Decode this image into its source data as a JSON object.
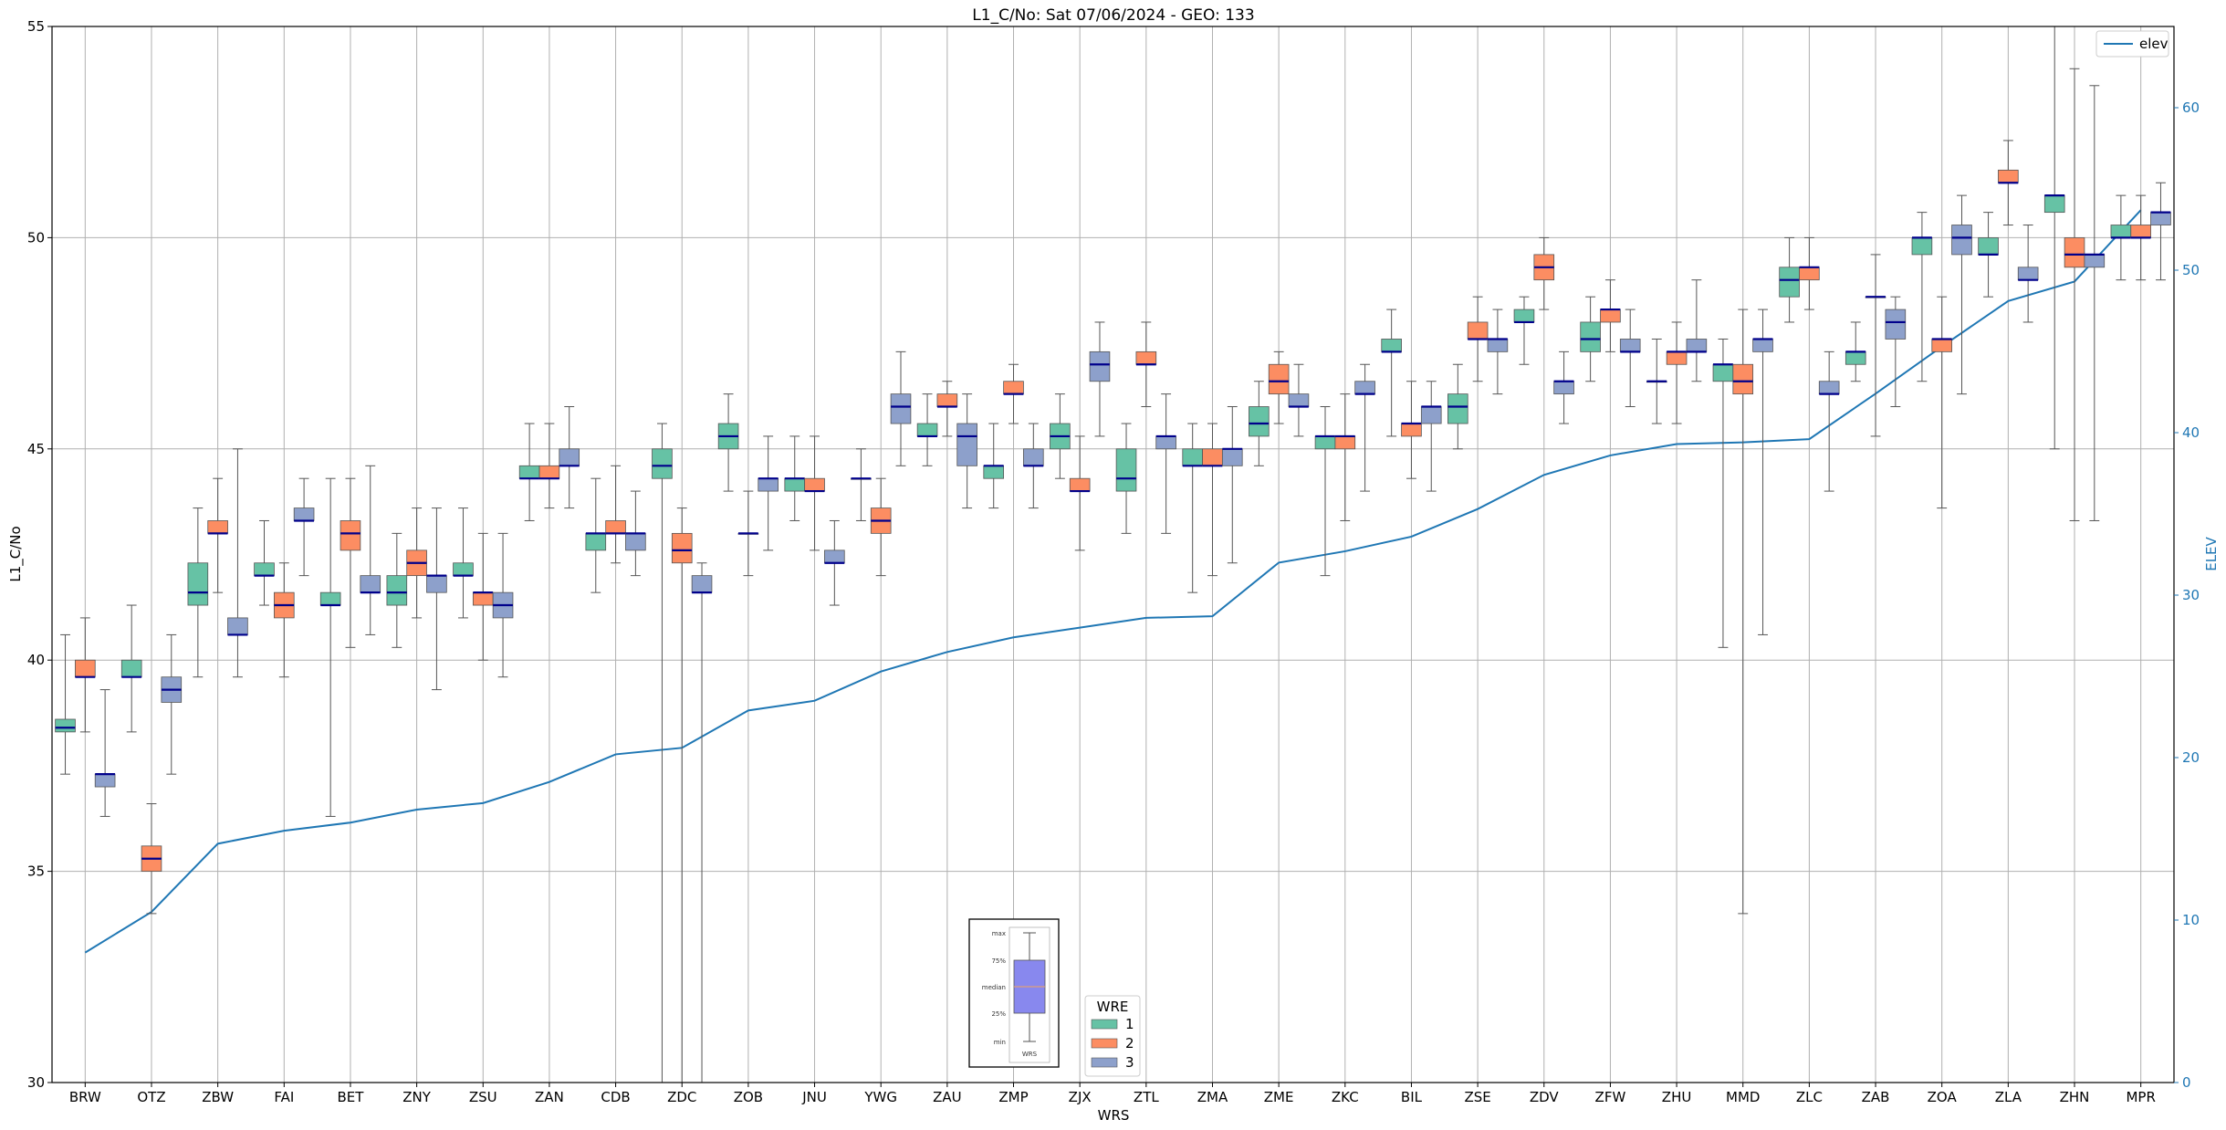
{
  "chart_data": {
    "type": "box",
    "title": "L1_C/No: Sat 07/06/2024 - GEO: 133",
    "xlabel": "WRS",
    "ylabel": "L1_C/No",
    "y2label": "ELEV",
    "ylim": [
      30,
      55
    ],
    "y2lim": [
      0,
      65
    ],
    "yticks": [
      30,
      35,
      40,
      45,
      50,
      55
    ],
    "y2ticks": [
      0,
      10,
      20,
      30,
      40,
      50,
      60
    ],
    "grid": true,
    "categories": [
      "BRW",
      "OTZ",
      "ZBW",
      "FAI",
      "BET",
      "ZNY",
      "ZSU",
      "ZAN",
      "CDB",
      "ZDC",
      "ZOB",
      "JNU",
      "YWG",
      "ZAU",
      "ZMP",
      "ZJX",
      "ZTL",
      "ZMA",
      "ZME",
      "ZKC",
      "BIL",
      "ZSE",
      "ZDV",
      "ZFW",
      "ZHU",
      "MMD",
      "ZLC",
      "ZAB",
      "ZOA",
      "ZLA",
      "ZHN",
      "MPR"
    ],
    "colors": {
      "1": "#66c2a5",
      "2": "#fc8d62",
      "3": "#8da0cb",
      "median": "#00008b",
      "elev": "#1f77b4",
      "whisker": "#555555"
    },
    "legend_title": "WRE",
    "series": [
      {
        "name": "1",
        "boxes": [
          [
            37.3,
            38.3,
            38.4,
            38.6,
            40.6
          ],
          [
            38.3,
            39.6,
            39.6,
            40.0,
            41.3
          ],
          [
            39.6,
            41.3,
            41.6,
            42.3,
            43.6
          ],
          [
            41.3,
            42.0,
            42.0,
            42.3,
            43.3
          ],
          [
            36.3,
            41.3,
            41.3,
            41.6,
            44.3
          ],
          [
            40.3,
            41.3,
            41.6,
            42.0,
            43.0
          ],
          [
            41.0,
            42.0,
            42.0,
            42.3,
            43.6
          ],
          [
            43.3,
            44.3,
            44.3,
            44.6,
            45.6
          ],
          [
            41.6,
            42.6,
            43.0,
            43.0,
            44.3
          ],
          [
            30.0,
            44.3,
            44.6,
            45.0,
            45.6
          ],
          [
            44.0,
            45.0,
            45.3,
            45.6,
            46.3
          ],
          [
            43.3,
            44.0,
            44.3,
            44.3,
            45.3
          ],
          [
            43.3,
            44.3,
            44.3,
            44.3,
            45.0
          ],
          [
            44.6,
            45.3,
            45.3,
            45.6,
            46.3
          ],
          [
            43.6,
            44.3,
            44.6,
            44.6,
            45.6
          ],
          [
            44.3,
            45.0,
            45.3,
            45.6,
            46.3
          ],
          [
            43.0,
            44.0,
            44.3,
            45.0,
            45.6
          ],
          [
            41.6,
            44.6,
            44.6,
            45.0,
            45.6
          ],
          [
            44.6,
            45.3,
            45.6,
            46.0,
            46.6
          ],
          [
            42.0,
            45.0,
            45.3,
            45.3,
            46.0
          ],
          [
            45.3,
            47.3,
            47.3,
            47.6,
            48.3
          ],
          [
            45.0,
            45.6,
            46.0,
            46.3,
            47.0
          ],
          [
            47.0,
            48.0,
            48.0,
            48.3,
            48.6
          ],
          [
            46.6,
            47.3,
            47.6,
            48.0,
            48.6
          ],
          [
            45.6,
            46.6,
            46.6,
            46.6,
            47.6
          ],
          [
            40.3,
            46.6,
            47.0,
            47.0,
            47.6
          ],
          [
            48.0,
            48.6,
            49.0,
            49.3,
            50.0
          ],
          [
            46.6,
            47.0,
            47.3,
            47.3,
            48.0
          ],
          [
            46.6,
            49.6,
            50.0,
            50.0,
            50.6
          ],
          [
            48.6,
            49.6,
            49.6,
            50.0,
            50.6
          ],
          [
            45.0,
            50.6,
            51.0,
            51.0,
            56.0
          ],
          [
            49.0,
            50.0,
            50.0,
            50.3,
            51.0
          ]
        ]
      },
      {
        "name": "2",
        "boxes": [
          [
            38.3,
            39.6,
            39.6,
            40.0,
            41.0
          ],
          [
            34.0,
            35.0,
            35.3,
            35.6,
            36.6
          ],
          [
            41.6,
            43.0,
            43.0,
            43.3,
            44.3
          ],
          [
            39.6,
            41.0,
            41.3,
            41.6,
            42.3
          ],
          [
            40.3,
            42.6,
            43.0,
            43.3,
            44.3
          ],
          [
            41.0,
            42.0,
            42.3,
            42.6,
            43.6
          ],
          [
            40.0,
            41.3,
            41.6,
            41.6,
            43.0
          ],
          [
            43.6,
            44.3,
            44.3,
            44.6,
            45.6
          ],
          [
            42.3,
            43.0,
            43.0,
            43.3,
            44.6
          ],
          [
            30.0,
            42.3,
            42.6,
            43.0,
            43.6
          ],
          [
            42.0,
            43.0,
            43.0,
            43.0,
            44.0
          ],
          [
            42.6,
            44.0,
            44.0,
            44.3,
            45.3
          ],
          [
            42.0,
            43.0,
            43.3,
            43.6,
            44.3
          ],
          [
            45.3,
            46.0,
            46.0,
            46.3,
            46.6
          ],
          [
            45.6,
            46.3,
            46.3,
            46.6,
            47.0
          ],
          [
            42.6,
            44.0,
            44.0,
            44.3,
            45.3
          ],
          [
            46.0,
            47.0,
            47.0,
            47.3,
            48.0
          ],
          [
            42.0,
            44.6,
            44.6,
            45.0,
            45.6
          ],
          [
            45.6,
            46.3,
            46.6,
            47.0,
            47.3
          ],
          [
            43.3,
            45.0,
            45.3,
            45.3,
            46.3
          ],
          [
            44.3,
            45.3,
            45.6,
            45.6,
            46.6
          ],
          [
            46.6,
            47.6,
            47.6,
            48.0,
            48.6
          ],
          [
            48.3,
            49.0,
            49.3,
            49.6,
            50.0
          ],
          [
            47.3,
            48.0,
            48.3,
            48.3,
            49.0
          ],
          [
            45.6,
            47.0,
            47.3,
            47.3,
            48.0
          ],
          [
            34.0,
            46.3,
            46.6,
            47.0,
            48.3
          ],
          [
            48.3,
            49.0,
            49.3,
            49.3,
            50.0
          ],
          [
            45.3,
            48.6,
            48.6,
            48.6,
            49.6
          ],
          [
            43.6,
            47.3,
            47.6,
            47.6,
            48.6
          ],
          [
            50.3,
            51.3,
            51.3,
            51.6,
            52.3
          ],
          [
            43.3,
            49.3,
            49.6,
            50.0,
            54.0
          ],
          [
            49.0,
            50.0,
            50.0,
            50.3,
            51.0
          ]
        ]
      },
      {
        "name": "3",
        "boxes": [
          [
            36.3,
            37.0,
            37.3,
            37.3,
            39.3
          ],
          [
            37.3,
            39.0,
            39.3,
            39.6,
            40.6
          ],
          [
            39.6,
            40.6,
            40.6,
            41.0,
            45.0
          ],
          [
            42.0,
            43.3,
            43.3,
            43.6,
            44.3
          ],
          [
            40.6,
            41.6,
            41.6,
            42.0,
            44.6
          ],
          [
            39.3,
            41.6,
            42.0,
            42.0,
            43.6
          ],
          [
            39.6,
            41.0,
            41.3,
            41.6,
            43.0
          ],
          [
            43.6,
            44.6,
            44.6,
            45.0,
            46.0
          ],
          [
            42.0,
            42.6,
            43.0,
            43.0,
            44.0
          ],
          [
            30.0,
            41.6,
            41.6,
            42.0,
            42.3
          ],
          [
            42.6,
            44.0,
            44.3,
            44.3,
            45.3
          ],
          [
            41.3,
            42.3,
            42.3,
            42.6,
            43.3
          ],
          [
            44.6,
            45.6,
            46.0,
            46.3,
            47.3
          ],
          [
            43.6,
            44.6,
            45.3,
            45.6,
            46.3
          ],
          [
            43.6,
            44.6,
            44.6,
            45.0,
            45.6
          ],
          [
            45.3,
            46.6,
            47.0,
            47.3,
            48.0
          ],
          [
            43.0,
            45.0,
            45.3,
            45.3,
            46.3
          ],
          [
            42.3,
            44.6,
            45.0,
            45.0,
            46.0
          ],
          [
            45.3,
            46.0,
            46.0,
            46.3,
            47.0
          ],
          [
            44.0,
            46.3,
            46.3,
            46.6,
            47.0
          ],
          [
            44.0,
            45.6,
            46.0,
            46.0,
            46.6
          ],
          [
            46.3,
            47.3,
            47.6,
            47.6,
            48.3
          ],
          [
            45.6,
            46.3,
            46.6,
            46.6,
            47.3
          ],
          [
            46.0,
            47.3,
            47.3,
            47.6,
            48.3
          ],
          [
            46.6,
            47.3,
            47.3,
            47.6,
            49.0
          ],
          [
            40.6,
            47.3,
            47.6,
            47.6,
            48.3
          ],
          [
            44.0,
            46.3,
            46.3,
            46.6,
            47.3
          ],
          [
            46.0,
            47.6,
            48.0,
            48.3,
            48.6
          ],
          [
            46.3,
            49.6,
            50.0,
            50.3,
            51.0
          ],
          [
            48.0,
            49.0,
            49.0,
            49.3,
            50.3
          ],
          [
            43.3,
            49.3,
            49.6,
            49.6,
            53.6
          ],
          [
            49.0,
            50.3,
            50.6,
            50.6,
            51.3
          ]
        ]
      }
    ],
    "elev": [
      8.0,
      10.5,
      14.7,
      15.5,
      16.0,
      16.8,
      17.2,
      18.5,
      20.2,
      20.6,
      22.9,
      23.5,
      25.3,
      26.5,
      27.4,
      28.0,
      28.6,
      28.7,
      32.0,
      32.7,
      33.6,
      35.3,
      37.4,
      38.6,
      39.3,
      39.4,
      39.6,
      42.4,
      45.3,
      48.1,
      49.3,
      53.7
    ],
    "legend_elev": "elev",
    "inset": {
      "labels": [
        "max",
        "75%",
        "median",
        "25%",
        "min"
      ],
      "xlabel": "WRS"
    }
  }
}
